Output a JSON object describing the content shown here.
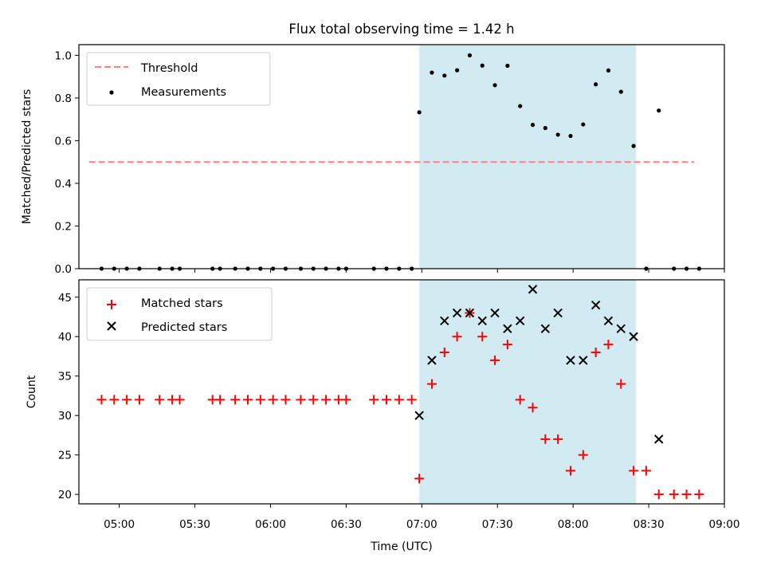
{
  "figure": {
    "title": "Flux total observing time = 1.42 h",
    "xlabel": "Time (UTC)"
  },
  "chart_data": [
    {
      "type": "scatter",
      "ylabel": "Matched/Predicted stars",
      "xlim": [
        "04:44",
        "09:00"
      ],
      "ylim": [
        0,
        1.05
      ],
      "yticks": [
        0.0,
        0.2,
        0.4,
        0.6,
        0.8,
        1.0
      ],
      "yticklabels": [
        "0.0",
        "0.2",
        "0.4",
        "0.6",
        "0.8",
        "1.0"
      ],
      "shaded_region": {
        "x": [
          "06:59",
          "08:25"
        ],
        "color": "#add8e6"
      },
      "legend_position": "upper left",
      "threshold": {
        "name": "Threshold",
        "y": 0.5,
        "x": [
          "04:48",
          "08:48"
        ],
        "color": "#ff7f7f",
        "style": "dashed"
      },
      "series": [
        {
          "name": "Measurements",
          "marker": "dot",
          "color": "#000000",
          "x": [
            "04:53",
            "04:58",
            "05:03",
            "05:08",
            "05:16",
            "05:21",
            "05:24",
            "05:37",
            "05:40",
            "05:46",
            "05:51",
            "05:56",
            "06:01",
            "06:06",
            "06:12",
            "06:17",
            "06:22",
            "06:27",
            "06:30",
            "06:41",
            "06:46",
            "06:51",
            "06:56",
            "06:59",
            "07:04",
            "07:09",
            "07:14",
            "07:19",
            "07:24",
            "07:29",
            "07:34",
            "07:39",
            "07:44",
            "07:49",
            "07:54",
            "07:59",
            "08:04",
            "08:09",
            "08:14",
            "08:19",
            "08:24",
            "08:29",
            "08:34",
            "08:40",
            "08:45",
            "08:50"
          ],
          "y": [
            0,
            0,
            0,
            0,
            0,
            0,
            0,
            0,
            0,
            0,
            0,
            0,
            0,
            0,
            0,
            0,
            0,
            0,
            0,
            0,
            0,
            0,
            0,
            0.733,
            0.919,
            0.905,
            0.93,
            1.0,
            0.952,
            0.86,
            0.951,
            0.762,
            0.674,
            0.659,
            0.628,
            0.622,
            0.676,
            0.864,
            0.929,
            0.829,
            0.575,
            0,
            0.741,
            0,
            0,
            0
          ]
        }
      ]
    },
    {
      "type": "scatter",
      "ylabel": "Count",
      "xlim": [
        "04:44",
        "09:00"
      ],
      "ylim": [
        18.8,
        47.2
      ],
      "yticks": [
        20,
        25,
        30,
        35,
        40,
        45
      ],
      "yticklabels": [
        "20",
        "25",
        "30",
        "35",
        "40",
        "45"
      ],
      "xticks": [
        "05:00",
        "05:30",
        "06:00",
        "06:30",
        "07:00",
        "07:30",
        "08:00",
        "08:30",
        "09:00"
      ],
      "shaded_region": {
        "x": [
          "06:59",
          "08:25"
        ],
        "color": "#add8e6"
      },
      "legend_position": "upper left",
      "series": [
        {
          "name": "Matched stars",
          "marker": "plus",
          "color": "#ff0000",
          "x": [
            "04:53",
            "04:58",
            "05:03",
            "05:08",
            "05:16",
            "05:21",
            "05:24",
            "05:37",
            "05:40",
            "05:46",
            "05:51",
            "05:56",
            "06:01",
            "06:06",
            "06:12",
            "06:17",
            "06:22",
            "06:27",
            "06:30",
            "06:41",
            "06:46",
            "06:51",
            "06:56",
            "06:59",
            "07:04",
            "07:09",
            "07:14",
            "07:19",
            "07:24",
            "07:29",
            "07:34",
            "07:39",
            "07:44",
            "07:49",
            "07:54",
            "07:59",
            "08:04",
            "08:09",
            "08:14",
            "08:19",
            "08:24",
            "08:29",
            "08:34",
            "08:40",
            "08:45",
            "08:50"
          ],
          "y": [
            32,
            32,
            32,
            32,
            32,
            32,
            32,
            32,
            32,
            32,
            32,
            32,
            32,
            32,
            32,
            32,
            32,
            32,
            32,
            32,
            32,
            32,
            32,
            22,
            34,
            38,
            40,
            43,
            40,
            37,
            39,
            32,
            31,
            27,
            27,
            23,
            25,
            38,
            39,
            34,
            23,
            23,
            20,
            20,
            20,
            20
          ]
        },
        {
          "name": "Predicted stars",
          "marker": "x",
          "color": "#000000",
          "x": [
            "06:59",
            "07:04",
            "07:09",
            "07:14",
            "07:19",
            "07:24",
            "07:29",
            "07:34",
            "07:39",
            "07:44",
            "07:49",
            "07:54",
            "07:59",
            "08:04",
            "08:09",
            "08:14",
            "08:19",
            "08:24",
            "08:34"
          ],
          "y": [
            30,
            37,
            42,
            43,
            43,
            42,
            43,
            41,
            42,
            46,
            41,
            43,
            37,
            37,
            44,
            42,
            41,
            40,
            27
          ]
        }
      ]
    }
  ]
}
